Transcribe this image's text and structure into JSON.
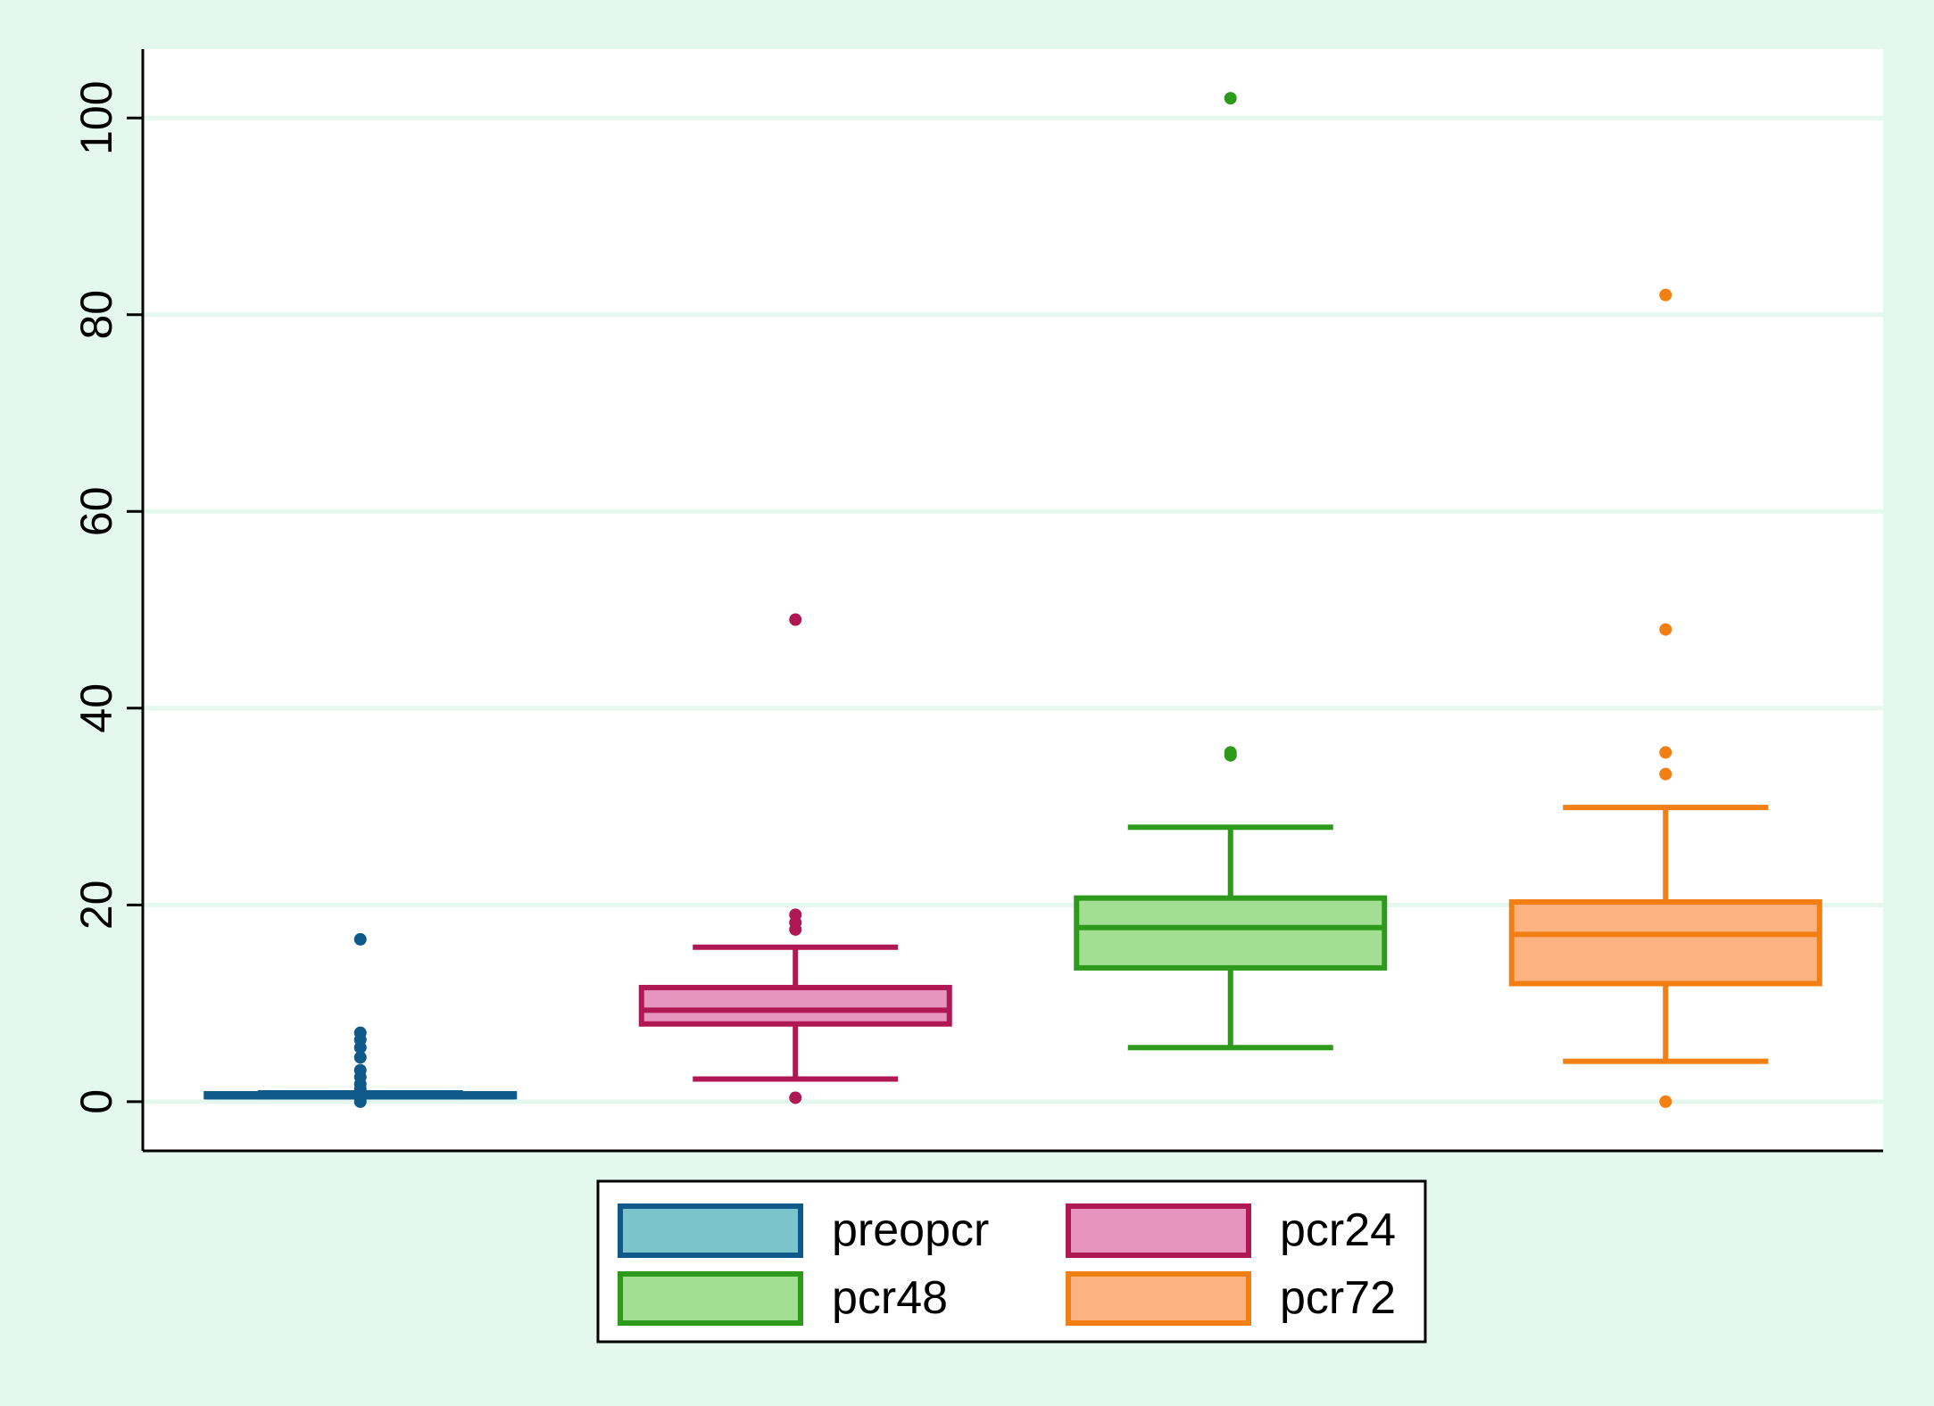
{
  "chart_data": {
    "type": "box",
    "ylim": [
      -5,
      107
    ],
    "yticks": [
      0,
      20,
      40,
      60,
      80,
      100
    ],
    "ytick_labels": [
      "0",
      "20",
      "40",
      "60",
      "80",
      "100"
    ],
    "grid": true,
    "legend_position": "bottom",
    "series": [
      {
        "name": "preopcr",
        "whisker_low": 0.5,
        "q1": 0.5,
        "median": 0.5,
        "q3": 0.8,
        "whisker_high": 0.9,
        "outliers": [
          16.5,
          7,
          6.3,
          5.5,
          4.5,
          3.2,
          2.5,
          1.8,
          1.3,
          0.3,
          0
        ],
        "stroke": "#0f5a8a",
        "fill": "#7cc4cc"
      },
      {
        "name": "pcr24",
        "whisker_low": 2.3,
        "q1": 7.9,
        "median": 9.3,
        "q3": 11.6,
        "whisker_high": 15.7,
        "outliers": [
          49,
          19,
          18.2,
          17.5,
          0.4
        ],
        "stroke": "#b01854",
        "fill": "#e794be"
      },
      {
        "name": "pcr48",
        "whisker_low": 5.5,
        "q1": 13.6,
        "median": 17.7,
        "q3": 20.7,
        "whisker_high": 27.9,
        "outliers": [
          102,
          35.5,
          35.2
        ],
        "stroke": "#2e9a1b",
        "fill": "#a2df93"
      },
      {
        "name": "pcr72",
        "whisker_low": 4.1,
        "q1": 12,
        "median": 17,
        "q3": 20.3,
        "whisker_high": 29.9,
        "outliers": [
          82,
          48,
          35.5,
          33.3,
          0
        ],
        "stroke": "#f27f14",
        "fill": "#fdb282"
      }
    ],
    "legend": {
      "columns": 2,
      "entries": [
        "preopcr",
        "pcr24",
        "pcr48",
        "pcr72"
      ]
    }
  }
}
